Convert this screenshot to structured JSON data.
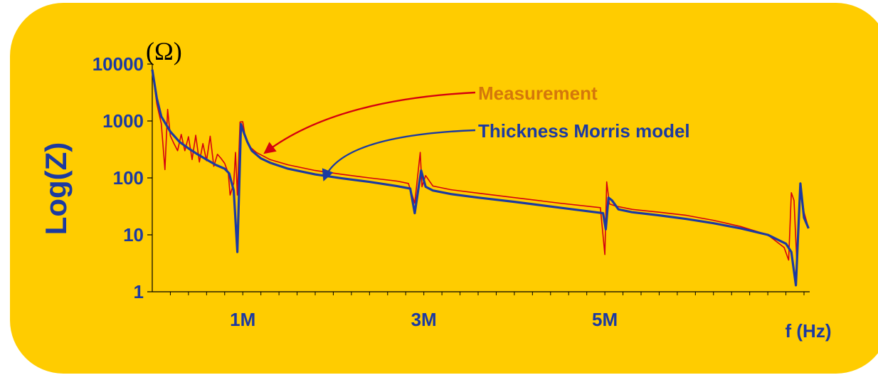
{
  "chart_data": {
    "type": "line",
    "yscale": "log",
    "ylabel": "Log(Z)",
    "y_unit": "(Ω)",
    "xlabel": "f (Hz)",
    "ylim": [
      1,
      10000
    ],
    "xlim": [
      0,
      7.2
    ],
    "yticks": [
      {
        "value": 1,
        "label": "1"
      },
      {
        "value": 10,
        "label": "10"
      },
      {
        "value": 100,
        "label": "100"
      },
      {
        "value": 1000,
        "label": "1000"
      },
      {
        "value": 10000,
        "label": "10000"
      }
    ],
    "xticks": [
      {
        "value": 1,
        "label": "1M"
      },
      {
        "value": 3,
        "label": "3M"
      },
      {
        "value": 5,
        "label": "5M"
      }
    ],
    "series": [
      {
        "name": "Measurement",
        "color": "#d4000f",
        "points": [
          [
            0.0,
            8000
          ],
          [
            0.05,
            2000
          ],
          [
            0.1,
            900
          ],
          [
            0.14,
            140
          ],
          [
            0.17,
            1600
          ],
          [
            0.2,
            550
          ],
          [
            0.24,
            400
          ],
          [
            0.28,
            300
          ],
          [
            0.32,
            580
          ],
          [
            0.36,
            300
          ],
          [
            0.4,
            530
          ],
          [
            0.44,
            210
          ],
          [
            0.48,
            560
          ],
          [
            0.52,
            190
          ],
          [
            0.56,
            400
          ],
          [
            0.6,
            200
          ],
          [
            0.64,
            540
          ],
          [
            0.68,
            160
          ],
          [
            0.72,
            260
          ],
          [
            0.76,
            220
          ],
          [
            0.8,
            180
          ],
          [
            0.84,
            120
          ],
          [
            0.86,
            50
          ],
          [
            0.9,
            80
          ],
          [
            0.92,
            280
          ],
          [
            0.94,
            50
          ],
          [
            0.97,
            960
          ],
          [
            1.0,
            970
          ],
          [
            1.03,
            500
          ],
          [
            1.08,
            350
          ],
          [
            1.15,
            280
          ],
          [
            1.3,
            210
          ],
          [
            1.5,
            170
          ],
          [
            1.8,
            135
          ],
          [
            2.1,
            115
          ],
          [
            2.4,
            100
          ],
          [
            2.7,
            88
          ],
          [
            2.83,
            80
          ],
          [
            2.9,
            36
          ],
          [
            2.96,
            280
          ],
          [
            2.98,
            70
          ],
          [
            3.02,
            110
          ],
          [
            3.1,
            72
          ],
          [
            3.3,
            62
          ],
          [
            3.6,
            54
          ],
          [
            4.0,
            45
          ],
          [
            4.5,
            36
          ],
          [
            4.95,
            30
          ],
          [
            5.0,
            4.5
          ],
          [
            5.02,
            85
          ],
          [
            5.05,
            35
          ],
          [
            5.12,
            32
          ],
          [
            5.3,
            28
          ],
          [
            5.6,
            25
          ],
          [
            5.9,
            22
          ],
          [
            6.2,
            18
          ],
          [
            6.5,
            14
          ],
          [
            6.8,
            10
          ],
          [
            6.98,
            6
          ],
          [
            7.03,
            3.6
          ],
          [
            7.06,
            55
          ],
          [
            7.09,
            40
          ],
          [
            7.12,
            3.5
          ],
          [
            7.16,
            75
          ],
          [
            7.2,
            25
          ],
          [
            7.25,
            13
          ]
        ]
      },
      {
        "name": "Thickness Morris model",
        "color": "#1c3aa1",
        "points": [
          [
            0.0,
            8000
          ],
          [
            0.05,
            2500
          ],
          [
            0.1,
            1200
          ],
          [
            0.2,
            650
          ],
          [
            0.3,
            430
          ],
          [
            0.4,
            330
          ],
          [
            0.5,
            260
          ],
          [
            0.6,
            210
          ],
          [
            0.7,
            170
          ],
          [
            0.8,
            145
          ],
          [
            0.85,
            120
          ],
          [
            0.9,
            60
          ],
          [
            0.94,
            5
          ],
          [
            0.98,
            880
          ],
          [
            1.0,
            700
          ],
          [
            1.05,
            430
          ],
          [
            1.1,
            300
          ],
          [
            1.2,
            220
          ],
          [
            1.3,
            185
          ],
          [
            1.5,
            145
          ],
          [
            1.8,
            115
          ],
          [
            2.1,
            98
          ],
          [
            2.4,
            85
          ],
          [
            2.7,
            72
          ],
          [
            2.85,
            65
          ],
          [
            2.9,
            24
          ],
          [
            2.97,
            135
          ],
          [
            3.02,
            70
          ],
          [
            3.1,
            60
          ],
          [
            3.3,
            52
          ],
          [
            3.6,
            45
          ],
          [
            4.0,
            38
          ],
          [
            4.5,
            30
          ],
          [
            4.98,
            24
          ],
          [
            5.01,
            12.5
          ],
          [
            5.04,
            45
          ],
          [
            5.08,
            40
          ],
          [
            5.15,
            28
          ],
          [
            5.3,
            25
          ],
          [
            5.6,
            22
          ],
          [
            5.9,
            19
          ],
          [
            6.2,
            16
          ],
          [
            6.5,
            13
          ],
          [
            6.8,
            10
          ],
          [
            7.0,
            7
          ],
          [
            7.06,
            5
          ],
          [
            7.11,
            1.3
          ],
          [
            7.16,
            80
          ],
          [
            7.2,
            20
          ],
          [
            7.25,
            13
          ]
        ]
      }
    ],
    "annotations": [
      {
        "text": "Measurement",
        "color": "#d4770b",
        "target_series": 0,
        "target": [
          1.25,
          280
        ]
      },
      {
        "text": "Thickness Morris model",
        "color": "#1c3aa1",
        "target_series": 1,
        "target": [
          1.9,
          95
        ]
      }
    ]
  }
}
